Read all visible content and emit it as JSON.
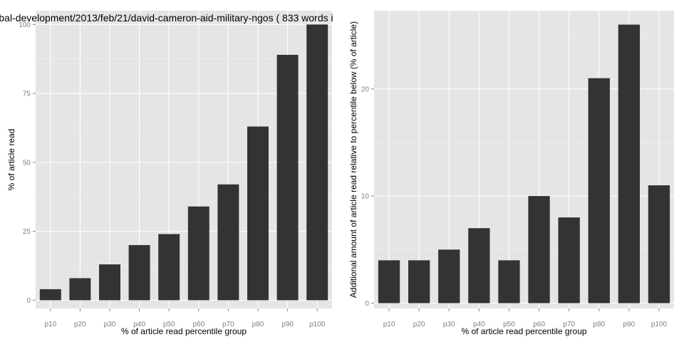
{
  "chart_data": [
    {
      "type": "bar",
      "title": "bal-development/2013/feb/21/david-cameron-aid-military-ngos ( 833 words i",
      "xlabel": "% of article read percentile group",
      "ylabel": "% of article read",
      "categories": [
        "p10",
        "p20",
        "p30",
        "p40",
        "p50",
        "p60",
        "p70",
        "p80",
        "p90",
        "p100"
      ],
      "values": [
        4,
        8,
        13,
        20,
        24,
        34,
        42,
        63,
        89,
        100
      ],
      "ylim": [
        -3,
        105
      ],
      "yticks": [
        0,
        25,
        50,
        75,
        100
      ],
      "grid": true,
      "bar_color": "#333333",
      "panel_color": "#e5e5e5"
    },
    {
      "type": "bar",
      "title": "",
      "xlabel": "% of article read percentile group",
      "ylabel": "Additional amount of article read relative to percentile below (% of article)",
      "categories": [
        "p10",
        "p20",
        "p30",
        "p40",
        "p50",
        "p60",
        "p70",
        "p80",
        "p90",
        "p100"
      ],
      "values": [
        4,
        4,
        5,
        7,
        4,
        10,
        8,
        21,
        26,
        11
      ],
      "ylim": [
        -0.5,
        27.3
      ],
      "yticks": [
        0,
        10,
        20
      ],
      "grid": true,
      "bar_color": "#333333",
      "panel_color": "#e5e5e5"
    }
  ]
}
